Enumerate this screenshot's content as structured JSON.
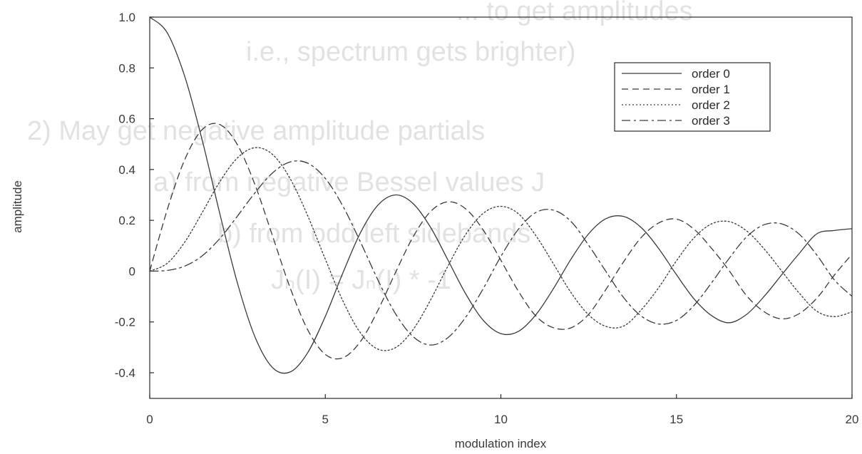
{
  "chart_data": {
    "type": "line",
    "title": "",
    "xlabel": "modulation index",
    "ylabel": "amplitude",
    "xlim": [
      0,
      20
    ],
    "ylim": [
      -0.5,
      1.0
    ],
    "grid": false,
    "legend_position": "top-right",
    "x_ticks": [
      0,
      5,
      10,
      15,
      20
    ],
    "x_tick_labels": [
      "0",
      "5",
      "10",
      "15",
      "20"
    ],
    "y_ticks": [
      1.0,
      0.8,
      0.6,
      0.4,
      0.2,
      0,
      -0.2,
      -0.4
    ],
    "y_tick_labels": [
      "1.0",
      "0.8",
      "0.6",
      "0.4",
      "0.2",
      "0",
      "-0.2",
      "-0.4"
    ],
    "x": [
      0,
      0.5,
      1,
      1.5,
      2,
      2.5,
      3,
      3.5,
      4,
      4.5,
      5,
      5.5,
      6,
      6.5,
      7,
      7.5,
      8,
      8.5,
      9,
      9.5,
      10,
      10.5,
      11,
      11.5,
      12,
      12.5,
      13,
      13.5,
      14,
      14.5,
      15,
      15.5,
      16,
      16.5,
      17,
      17.5,
      18,
      18.5,
      19,
      19.5,
      20
    ],
    "series": [
      {
        "name": "order 0",
        "dash": "solid",
        "values": [
          1.0,
          0.938,
          0.765,
          0.512,
          0.224,
          -0.048,
          -0.26,
          -0.38,
          -0.397,
          -0.321,
          -0.178,
          -0.007,
          0.151,
          0.26,
          0.3,
          0.266,
          0.172,
          0.042,
          -0.09,
          -0.194,
          -0.246,
          -0.237,
          -0.171,
          -0.068,
          0.048,
          0.147,
          0.207,
          0.215,
          0.171,
          0.088,
          -0.014,
          -0.109,
          -0.175,
          -0.203,
          -0.17,
          -0.099,
          -0.014,
          0.07,
          0.147,
          0.16,
          0.167
        ]
      },
      {
        "name": "order 1",
        "dash": "dashed",
        "values": [
          0.0,
          0.242,
          0.44,
          0.558,
          0.577,
          0.497,
          0.339,
          0.137,
          -0.066,
          -0.231,
          -0.328,
          -0.341,
          -0.277,
          -0.154,
          -0.005,
          0.135,
          0.235,
          0.273,
          0.245,
          0.161,
          0.043,
          -0.079,
          -0.177,
          -0.223,
          -0.223,
          -0.17,
          -0.07,
          0.038,
          0.133,
          0.19,
          0.205,
          0.165,
          0.09,
          0.002,
          -0.097,
          -0.16,
          -0.188,
          -0.167,
          -0.106,
          -0.015,
          0.067
        ]
      },
      {
        "name": "order 2",
        "dash": "dotted",
        "values": [
          0.0,
          0.031,
          0.115,
          0.232,
          0.353,
          0.446,
          0.486,
          0.459,
          0.364,
          0.218,
          0.047,
          -0.117,
          -0.243,
          -0.307,
          -0.301,
          -0.23,
          -0.113,
          0.022,
          0.145,
          0.228,
          0.255,
          0.226,
          0.139,
          0.028,
          -0.085,
          -0.172,
          -0.218,
          -0.216,
          -0.152,
          -0.064,
          0.041,
          0.131,
          0.186,
          0.195,
          0.158,
          0.087,
          0.0,
          -0.087,
          -0.158,
          -0.179,
          -0.16
        ]
      },
      {
        "name": "order 3",
        "dash": "dash-dot",
        "values": [
          0.0,
          0.003,
          0.02,
          0.061,
          0.129,
          0.217,
          0.309,
          0.387,
          0.43,
          0.425,
          0.365,
          0.256,
          0.115,
          -0.035,
          -0.168,
          -0.258,
          -0.291,
          -0.261,
          -0.181,
          -0.068,
          0.058,
          0.165,
          0.231,
          0.24,
          0.195,
          0.102,
          -0.003,
          -0.105,
          -0.177,
          -0.208,
          -0.194,
          -0.135,
          -0.046,
          0.05,
          0.135,
          0.183,
          0.186,
          0.145,
          0.063,
          -0.035,
          -0.099
        ]
      }
    ]
  },
  "background_text": [
    "... to get amplitudes",
    "i.e., spectrum gets brighter)",
    "2) May get negative amplitude partials",
    "a) from negative Bessel values J",
    "b) from odd left sidebands",
    "Jₙ(I) = Jₙ(I) * -1"
  ],
  "colors": {
    "line": "#3a3a3a",
    "axis": "#2a2a2a",
    "text": "#3a3a3a",
    "ghost_text": "#e2e2e2",
    "background": "#ffffff"
  }
}
